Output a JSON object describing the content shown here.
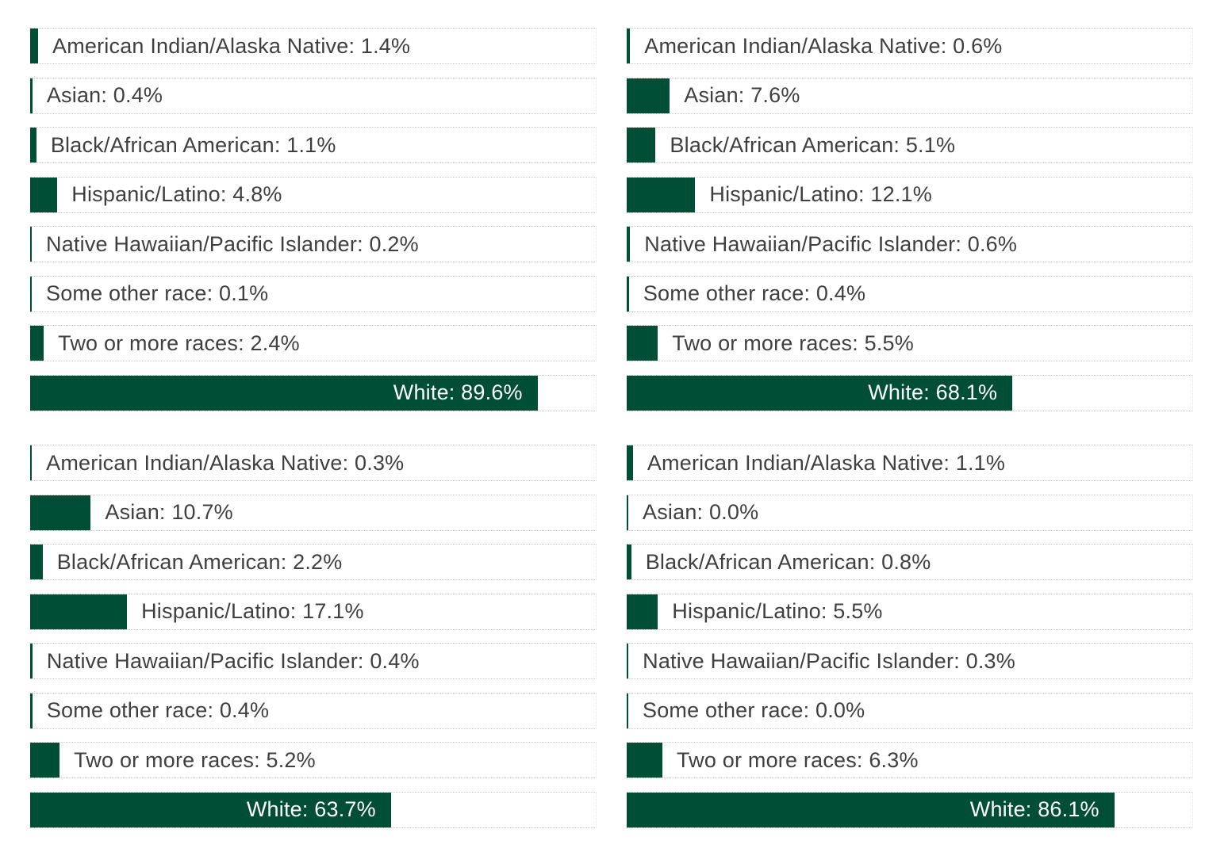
{
  "colors": {
    "bar": "#014e37",
    "text": "#3f3f3f",
    "inside_text": "#ffffff",
    "gridline": "#c9ccbf"
  },
  "chart_data": [
    {
      "type": "bar",
      "orientation": "horizontal",
      "xlim": [
        0,
        100
      ],
      "categories": [
        "American Indian/Alaska Native",
        "Asian",
        "Black/African American",
        "Hispanic/Latino",
        "Native Hawaiian/Pacific Islander",
        "Some other race",
        "Two or more races",
        "White"
      ],
      "values": [
        1.4,
        0.4,
        1.1,
        4.8,
        0.2,
        0.1,
        2.4,
        89.6
      ],
      "labels": [
        "American Indian/Alaska Native: 1.4%",
        "Asian: 0.4%",
        "Black/African American: 1.1%",
        "Hispanic/Latino: 4.8%",
        "Native Hawaiian/Pacific Islander: 0.2%",
        "Some other race: 0.1%",
        "Two or more races: 2.4%",
        "White: 89.6%"
      ]
    },
    {
      "type": "bar",
      "orientation": "horizontal",
      "xlim": [
        0,
        100
      ],
      "categories": [
        "American Indian/Alaska Native",
        "Asian",
        "Black/African American",
        "Hispanic/Latino",
        "Native Hawaiian/Pacific Islander",
        "Some other race",
        "Two or more races",
        "White"
      ],
      "values": [
        0.6,
        7.6,
        5.1,
        12.1,
        0.6,
        0.4,
        5.5,
        68.1
      ],
      "labels": [
        "American Indian/Alaska Native: 0.6%",
        "Asian: 7.6%",
        "Black/African American: 5.1%",
        "Hispanic/Latino: 12.1%",
        "Native Hawaiian/Pacific Islander: 0.6%",
        "Some other race: 0.4%",
        "Two or more races: 5.5%",
        "White: 68.1%"
      ]
    },
    {
      "type": "bar",
      "orientation": "horizontal",
      "xlim": [
        0,
        100
      ],
      "categories": [
        "American Indian/Alaska Native",
        "Asian",
        "Black/African American",
        "Hispanic/Latino",
        "Native Hawaiian/Pacific Islander",
        "Some other race",
        "Two or more races",
        "White"
      ],
      "values": [
        0.3,
        10.7,
        2.2,
        17.1,
        0.4,
        0.4,
        5.2,
        63.7
      ],
      "labels": [
        "American Indian/Alaska Native: 0.3%",
        "Asian: 10.7%",
        "Black/African American: 2.2%",
        "Hispanic/Latino: 17.1%",
        "Native Hawaiian/Pacific Islander: 0.4%",
        "Some other race: 0.4%",
        "Two or more races: 5.2%",
        "White: 63.7%"
      ]
    },
    {
      "type": "bar",
      "orientation": "horizontal",
      "xlim": [
        0,
        100
      ],
      "categories": [
        "American Indian/Alaska Native",
        "Asian",
        "Black/African American",
        "Hispanic/Latino",
        "Native Hawaiian/Pacific Islander",
        "Some other race",
        "Two or more races",
        "White"
      ],
      "values": [
        1.1,
        0.0,
        0.8,
        5.5,
        0.3,
        0.0,
        6.3,
        86.1
      ],
      "labels": [
        "American Indian/Alaska Native: 1.1%",
        "Asian: 0.0%",
        "Black/African American: 0.8%",
        "Hispanic/Latino: 5.5%",
        "Native Hawaiian/Pacific Islander: 0.3%",
        "Some other race: 0.0%",
        "Two or more races: 6.3%",
        "White: 86.1%"
      ]
    }
  ]
}
